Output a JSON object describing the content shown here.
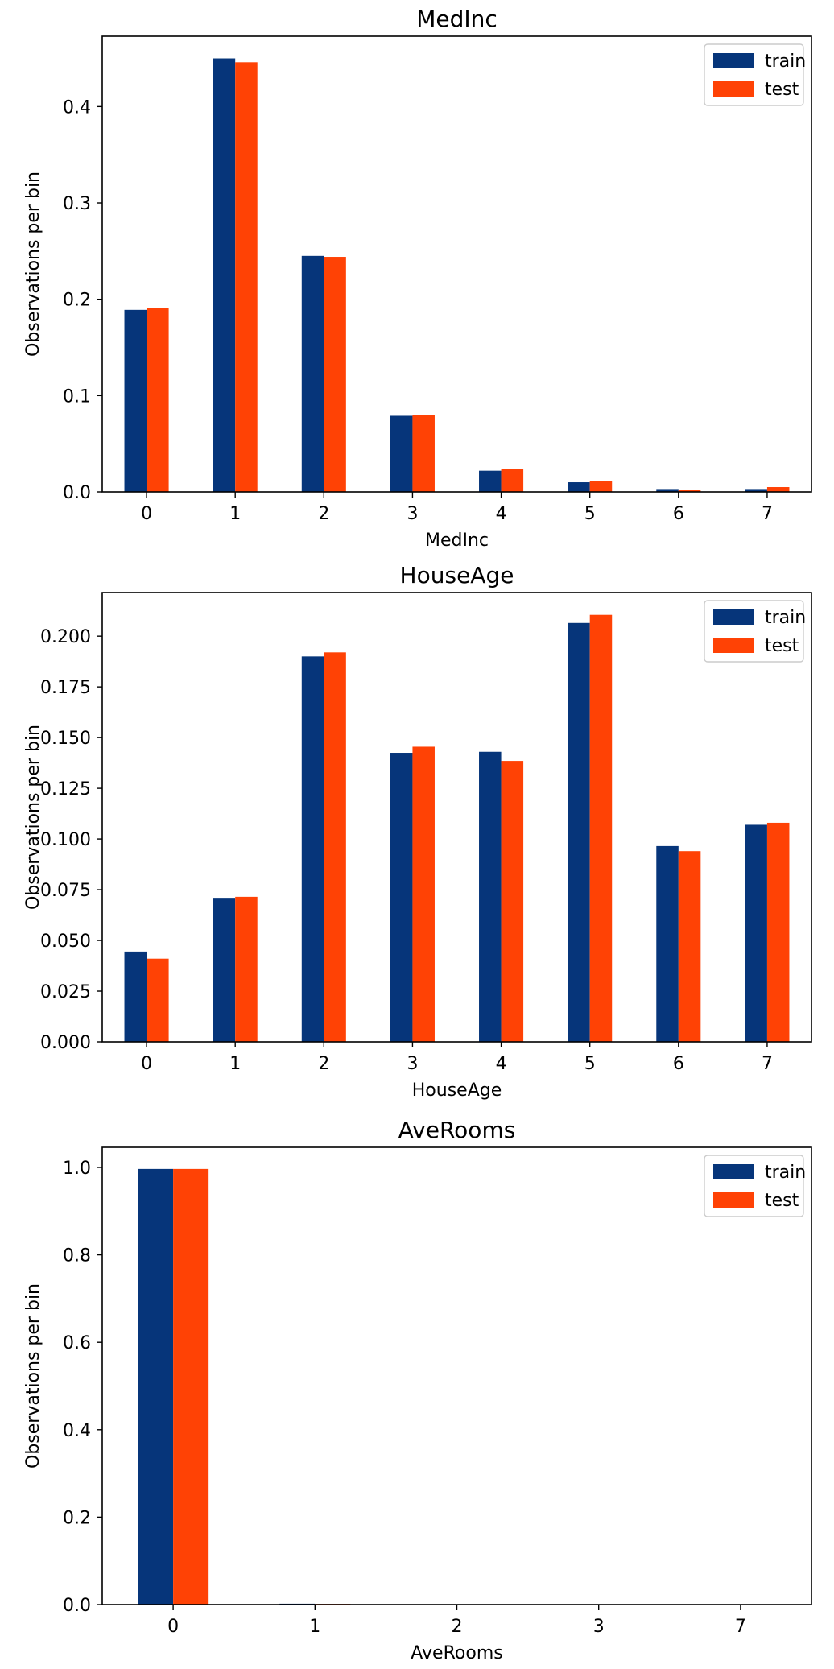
{
  "colors": {
    "train": "#06357a",
    "test": "#ff4205",
    "axes": "#000000",
    "legend_border": "#cccccc"
  },
  "chart_data": [
    {
      "type": "bar",
      "title": "MedInc",
      "xlabel": "MedInc",
      "ylabel": "Observations per bin",
      "categories": [
        "0",
        "1",
        "2",
        "3",
        "4",
        "5",
        "6",
        "7"
      ],
      "series": [
        {
          "name": "train",
          "values": [
            0.189,
            0.45,
            0.245,
            0.079,
            0.022,
            0.01,
            0.003,
            0.003
          ]
        },
        {
          "name": "test",
          "values": [
            0.191,
            0.446,
            0.244,
            0.08,
            0.024,
            0.011,
            0.002,
            0.005
          ]
        }
      ],
      "ylim": [
        0,
        0.473
      ],
      "yticks": [
        "0.0",
        "0.1",
        "0.2",
        "0.3",
        "0.4"
      ],
      "grid": false,
      "legend": "top-right"
    },
    {
      "type": "bar",
      "title": "HouseAge",
      "xlabel": "HouseAge",
      "ylabel": "Observations per bin",
      "categories": [
        "0",
        "1",
        "2",
        "3",
        "4",
        "5",
        "6",
        "7"
      ],
      "series": [
        {
          "name": "train",
          "values": [
            0.0445,
            0.071,
            0.19,
            0.1425,
            0.143,
            0.2065,
            0.0965,
            0.107
          ]
        },
        {
          "name": "test",
          "values": [
            0.041,
            0.0715,
            0.192,
            0.1455,
            0.1385,
            0.2105,
            0.094,
            0.108
          ]
        }
      ],
      "ylim": [
        0,
        0.2215
      ],
      "yticks": [
        "0.000",
        "0.025",
        "0.050",
        "0.075",
        "0.100",
        "0.125",
        "0.150",
        "0.175",
        "0.200"
      ],
      "grid": false,
      "legend": "top-right"
    },
    {
      "type": "bar",
      "title": "AveRooms",
      "xlabel": "AveRooms",
      "ylabel": "Observations per bin",
      "categories": [
        "0",
        "1",
        "2",
        "3",
        "7"
      ],
      "series": [
        {
          "name": "train",
          "values": [
            0.9965,
            0.002,
            0.0,
            0.0,
            0.0
          ]
        },
        {
          "name": "test",
          "values": [
            0.9965,
            0.0015,
            0.0,
            0.0,
            0.0
          ]
        }
      ],
      "ylim": [
        0,
        1.046
      ],
      "yticks": [
        "0.0",
        "0.2",
        "0.4",
        "0.6",
        "0.8",
        "1.0"
      ],
      "grid": false,
      "legend": "top-right"
    }
  ]
}
